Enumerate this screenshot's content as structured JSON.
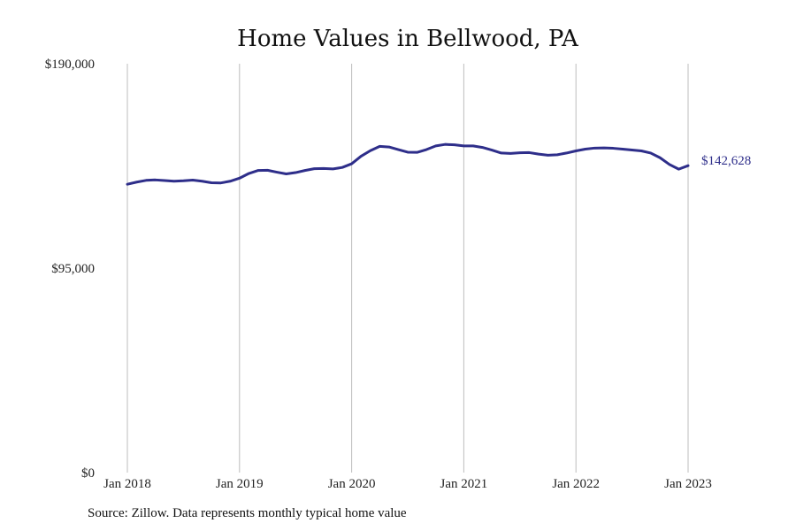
{
  "chart_data": {
    "type": "line",
    "title": "Home Values in Bellwood, PA",
    "xlabel": "",
    "ylabel": "",
    "ylim": [
      0,
      190000
    ],
    "yticks": [
      {
        "value": 0,
        "label": "$0"
      },
      {
        "value": 95000,
        "label": "$95,000"
      },
      {
        "value": 190000,
        "label": "$190,000"
      }
    ],
    "xticks": [
      "Jan 2018",
      "Jan 2019",
      "Jan 2020",
      "Jan 2021",
      "Jan 2022",
      "Jan 2023"
    ],
    "grid": "vertical",
    "x": [
      "2018-01",
      "2018-02",
      "2018-03",
      "2018-04",
      "2018-05",
      "2018-06",
      "2018-07",
      "2018-08",
      "2018-09",
      "2018-10",
      "2018-11",
      "2018-12",
      "2019-01",
      "2019-02",
      "2019-03",
      "2019-04",
      "2019-05",
      "2019-06",
      "2019-07",
      "2019-08",
      "2019-09",
      "2019-10",
      "2019-11",
      "2019-12",
      "2020-01",
      "2020-02",
      "2020-03",
      "2020-04",
      "2020-05",
      "2020-06",
      "2020-07",
      "2020-08",
      "2020-09",
      "2020-10",
      "2020-11",
      "2020-12",
      "2021-01",
      "2021-02",
      "2021-03",
      "2021-04",
      "2021-05",
      "2021-06",
      "2021-07",
      "2021-08",
      "2021-09",
      "2021-10",
      "2021-11",
      "2021-12",
      "2022-01",
      "2022-02",
      "2022-03",
      "2022-04",
      "2022-05",
      "2022-06",
      "2022-07",
      "2022-08",
      "2022-09",
      "2022-10",
      "2022-11",
      "2022-12",
      "2023-01"
    ],
    "series": [
      {
        "values": [
          134000,
          135000,
          135800,
          136000,
          135700,
          135400,
          135600,
          135900,
          135400,
          134700,
          134600,
          135400,
          136800,
          139000,
          140400,
          140500,
          139600,
          138800,
          139400,
          140400,
          141200,
          141300,
          141100,
          141800,
          143500,
          147000,
          149600,
          151600,
          151300,
          150100,
          148900,
          148800,
          150100,
          151800,
          152500,
          152300,
          151800,
          151800,
          151100,
          149900,
          148500,
          148300,
          148600,
          148700,
          148000,
          147500,
          147700,
          148500,
          149500,
          150300,
          150800,
          150900,
          150700,
          150300,
          149900,
          149500,
          148500,
          146300,
          143200,
          141000,
          142628
        ],
        "color": "#2e2e8a"
      }
    ],
    "end_label": "$142,628"
  },
  "source_text": "Source: Zillow. Data represents monthly typical home value"
}
